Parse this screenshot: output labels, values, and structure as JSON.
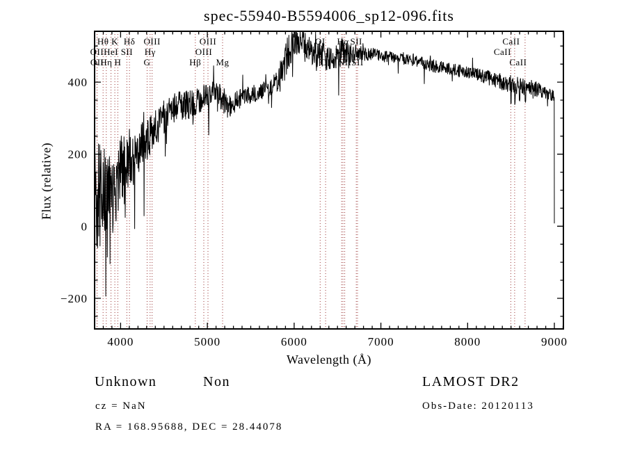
{
  "header": {
    "title": "spec-55940-B5594006_sp12-096.fits"
  },
  "footer": {
    "class_name": "Unknown",
    "subclass": "Non",
    "cz_text": "cz = NaN",
    "radec_text": "RA = 168.95688, DEC =  28.44078",
    "survey": "LAMOST DR2",
    "obs_date_text": "Obs-Date: 20120113"
  },
  "chart_data": {
    "type": "line",
    "title": "spec-55940-B5594006_sp12-096.fits",
    "xlabel": "Wavelength (Å)",
    "ylabel": "Flux (relative)",
    "xlim": [
      3700,
      9104
    ],
    "ylim": [
      -285,
      541
    ],
    "x_major_ticks": [
      4000,
      5000,
      6000,
      7000,
      8000,
      9000
    ],
    "x_minor_step": 100,
    "y_major_ticks": [
      -200,
      0,
      200,
      400
    ],
    "y_minor_step": 50,
    "grid": false,
    "frame_color": "#000000",
    "spectrum_color": "#000000",
    "line_marker_color": "#993333",
    "noise_seed": 20120113,
    "spectral_lines": [
      {
        "label": "Hθ",
        "row": 1,
        "wavelength": 3798,
        "dx": 0
      },
      {
        "label": "K",
        "row": 1,
        "wavelength": 3933,
        "dx": 0
      },
      {
        "label": "Hδ",
        "row": 1,
        "wavelength": 4102,
        "dx": 0
      },
      {
        "label": "OIII",
        "row": 1,
        "wavelength": 4363,
        "dx": 0
      },
      {
        "label": "OIII",
        "row": 1,
        "wavelength": 5007,
        "dx": 0
      },
      {
        "label": "OI",
        "row": 1,
        "wavelength": 6300,
        "dx": 0
      },
      {
        "label": "Hα",
        "row": 1,
        "wavelength": 6563,
        "dx": 0
      },
      {
        "label": "SII",
        "row": 1,
        "wavelength": 6716,
        "dx": 0
      },
      {
        "label": "CaII",
        "row": 1,
        "wavelength": 8542,
        "dx": -5
      },
      {
        "label": "OII",
        "row": 2,
        "wavelength": 3727,
        "dx": 0
      },
      {
        "label": "HeI",
        "row": 2,
        "wavelength": 3889,
        "dx": 0
      },
      {
        "label": "SII",
        "row": 2,
        "wavelength": 4072,
        "dx": 0
      },
      {
        "label": "Hγ",
        "row": 2,
        "wavelength": 4340,
        "dx": 0
      },
      {
        "label": "OIII",
        "row": 2,
        "wavelength": 4959,
        "dx": 0
      },
      {
        "label": "NII",
        "row": 2,
        "wavelength": 6548,
        "dx": 0
      },
      {
        "label": "CaII",
        "row": 2,
        "wavelength": 8498,
        "dx": -12
      },
      {
        "label": "OII",
        "row": 3,
        "wavelength": 3729,
        "dx": 0
      },
      {
        "label": "Hη",
        "row": 3,
        "wavelength": 3835,
        "dx": 0
      },
      {
        "label": "H",
        "row": 3,
        "wavelength": 3968,
        "dx": 0
      },
      {
        "label": "G",
        "row": 3,
        "wavelength": 4305,
        "dx": 0
      },
      {
        "label": "Hβ",
        "row": 3,
        "wavelength": 4861,
        "dx": 0
      },
      {
        "label": "Mg",
        "row": 3,
        "wavelength": 5175,
        "dx": 0
      },
      {
        "label": "OI",
        "row": 3,
        "wavelength": 6363,
        "dx": 0
      },
      {
        "label": "NII",
        "row": 3,
        "wavelength": 6583,
        "dx": 0
      },
      {
        "label": "SII",
        "row": 3,
        "wavelength": 6731,
        "dx": 0
      },
      {
        "label": "CaII",
        "row": 3,
        "wavelength": 8662,
        "dx": -10
      }
    ],
    "series": [
      {
        "name": "spectrum",
        "continuum_anchors": [
          [
            3703,
            60,
            300
          ],
          [
            3730,
            60,
            210
          ],
          [
            3760,
            90,
            180
          ],
          [
            3800,
            110,
            160
          ],
          [
            3840,
            75,
            150
          ],
          [
            3880,
            110,
            130
          ],
          [
            3920,
            65,
            120
          ],
          [
            3960,
            130,
            115
          ],
          [
            4000,
            150,
            130
          ],
          [
            4050,
            165,
            105
          ],
          [
            4100,
            190,
            95
          ],
          [
            4150,
            175,
            85
          ],
          [
            4200,
            205,
            80
          ],
          [
            4250,
            230,
            75
          ],
          [
            4300,
            245,
            70
          ],
          [
            4350,
            255,
            70
          ],
          [
            4400,
            270,
            62
          ],
          [
            4450,
            290,
            60
          ],
          [
            4500,
            300,
            58
          ],
          [
            4550,
            310,
            55
          ],
          [
            4600,
            320,
            52
          ],
          [
            4650,
            330,
            52
          ],
          [
            4700,
            340,
            50
          ],
          [
            4750,
            332,
            55
          ],
          [
            4800,
            330,
            55
          ],
          [
            4850,
            340,
            50
          ],
          [
            4900,
            350,
            46
          ],
          [
            4950,
            360,
            44
          ],
          [
            5000,
            365,
            42
          ],
          [
            5050,
            370,
            40
          ],
          [
            5100,
            370,
            40
          ],
          [
            5150,
            360,
            42
          ],
          [
            5200,
            342,
            45
          ],
          [
            5250,
            332,
            40
          ],
          [
            5300,
            340,
            36
          ],
          [
            5350,
            350,
            34
          ],
          [
            5400,
            355,
            32
          ],
          [
            5450,
            360,
            30
          ],
          [
            5500,
            365,
            30
          ],
          [
            5550,
            370,
            30
          ],
          [
            5600,
            375,
            30
          ],
          [
            5650,
            380,
            30
          ],
          [
            5700,
            385,
            32
          ],
          [
            5750,
            390,
            35
          ],
          [
            5800,
            398,
            42
          ],
          [
            5850,
            425,
            58
          ],
          [
            5900,
            462,
            65
          ],
          [
            5950,
            492,
            60
          ],
          [
            6000,
            512,
            55
          ],
          [
            6050,
            516,
            50
          ],
          [
            6100,
            502,
            50
          ],
          [
            6150,
            492,
            46
          ],
          [
            6200,
            486,
            46
          ],
          [
            6300,
            476,
            46
          ],
          [
            6400,
            466,
            42
          ],
          [
            6500,
            470,
            40
          ],
          [
            6550,
            480,
            52
          ],
          [
            6600,
            480,
            40
          ],
          [
            6700,
            476,
            30
          ],
          [
            6800,
            480,
            26
          ],
          [
            6900,
            478,
            22
          ],
          [
            7000,
            472,
            20
          ],
          [
            7100,
            468,
            20
          ],
          [
            7200,
            465,
            18
          ],
          [
            7300,
            462,
            18
          ],
          [
            7400,
            458,
            18
          ],
          [
            7500,
            452,
            20
          ],
          [
            7600,
            445,
            22
          ],
          [
            7700,
            441,
            20
          ],
          [
            7800,
            437,
            20
          ],
          [
            7900,
            432,
            20
          ],
          [
            8000,
            428,
            20
          ],
          [
            8100,
            422,
            22
          ],
          [
            8200,
            415,
            24
          ],
          [
            8300,
            408,
            25
          ],
          [
            8400,
            400,
            27
          ],
          [
            8500,
            395,
            29
          ],
          [
            8600,
            390,
            30
          ],
          [
            8700,
            385,
            28
          ],
          [
            8800,
            380,
            25
          ],
          [
            8900,
            372,
            22
          ],
          [
            9000,
            362,
            18
          ]
        ],
        "sky_residual_dips": [
          [
            8500,
            342
          ],
          [
            8545,
            338
          ],
          [
            8600,
            350
          ],
          [
            8665,
            348
          ]
        ],
        "end_drop": {
          "wavelength": 9000,
          "flux": 8
        }
      }
    ]
  }
}
